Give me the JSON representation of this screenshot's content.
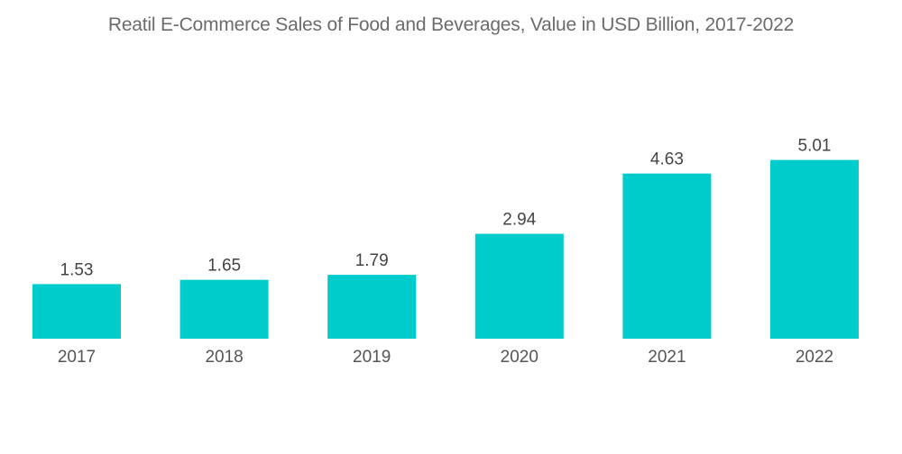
{
  "chart_data": {
    "type": "bar",
    "title": "Reatil E-Commerce Sales of Food and Beverages, Value in USD Billion, 2017-2022",
    "xlabel": "",
    "ylabel": "",
    "categories": [
      "2017",
      "2018",
      "2019",
      "2020",
      "2021",
      "2022"
    ],
    "values": [
      1.53,
      1.65,
      1.79,
      2.94,
      4.63,
      5.01
    ],
    "value_labels": [
      "1.53",
      "1.65",
      "1.79",
      "2.94",
      "4.63",
      "5.01"
    ],
    "ylim": [
      0,
      6
    ],
    "grid": false,
    "legend": "none",
    "bar_color": "#00CCCC"
  }
}
